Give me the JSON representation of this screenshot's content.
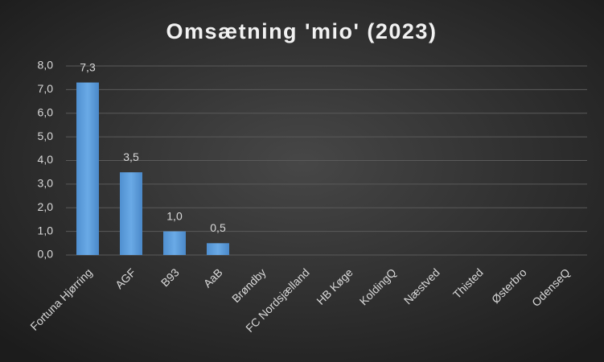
{
  "chart_data": {
    "type": "bar",
    "title": "Omsætning 'mio' (2023)",
    "categories": [
      "Fortuna Hjørring",
      "AGF",
      "B93",
      "AaB",
      "Brøndby",
      "FC Nordsjælland",
      "HB Køge",
      "KoldingQ",
      "Næstved",
      "Thisted",
      "Østerbro",
      "OdenseQ"
    ],
    "values": [
      7.3,
      3.5,
      1.0,
      0.5,
      null,
      null,
      null,
      null,
      null,
      null,
      null,
      null
    ],
    "value_labels": [
      "7,3",
      "3,5",
      "1,0",
      "0,5",
      null,
      null,
      null,
      null,
      null,
      null,
      null,
      null
    ],
    "color": "#5b9bd5",
    "ylim": [
      0,
      8
    ],
    "yticks": [
      {
        "value": 0,
        "label": "0,0"
      },
      {
        "value": 1,
        "label": "1,0"
      },
      {
        "value": 2,
        "label": "2,0"
      },
      {
        "value": 3,
        "label": "3,0"
      },
      {
        "value": 4,
        "label": "4,0"
      },
      {
        "value": 5,
        "label": "5,0"
      },
      {
        "value": 6,
        "label": "6,0"
      },
      {
        "value": 7,
        "label": "7,0"
      },
      {
        "value": 8,
        "label": "8,0"
      }
    ],
    "grid": true
  }
}
